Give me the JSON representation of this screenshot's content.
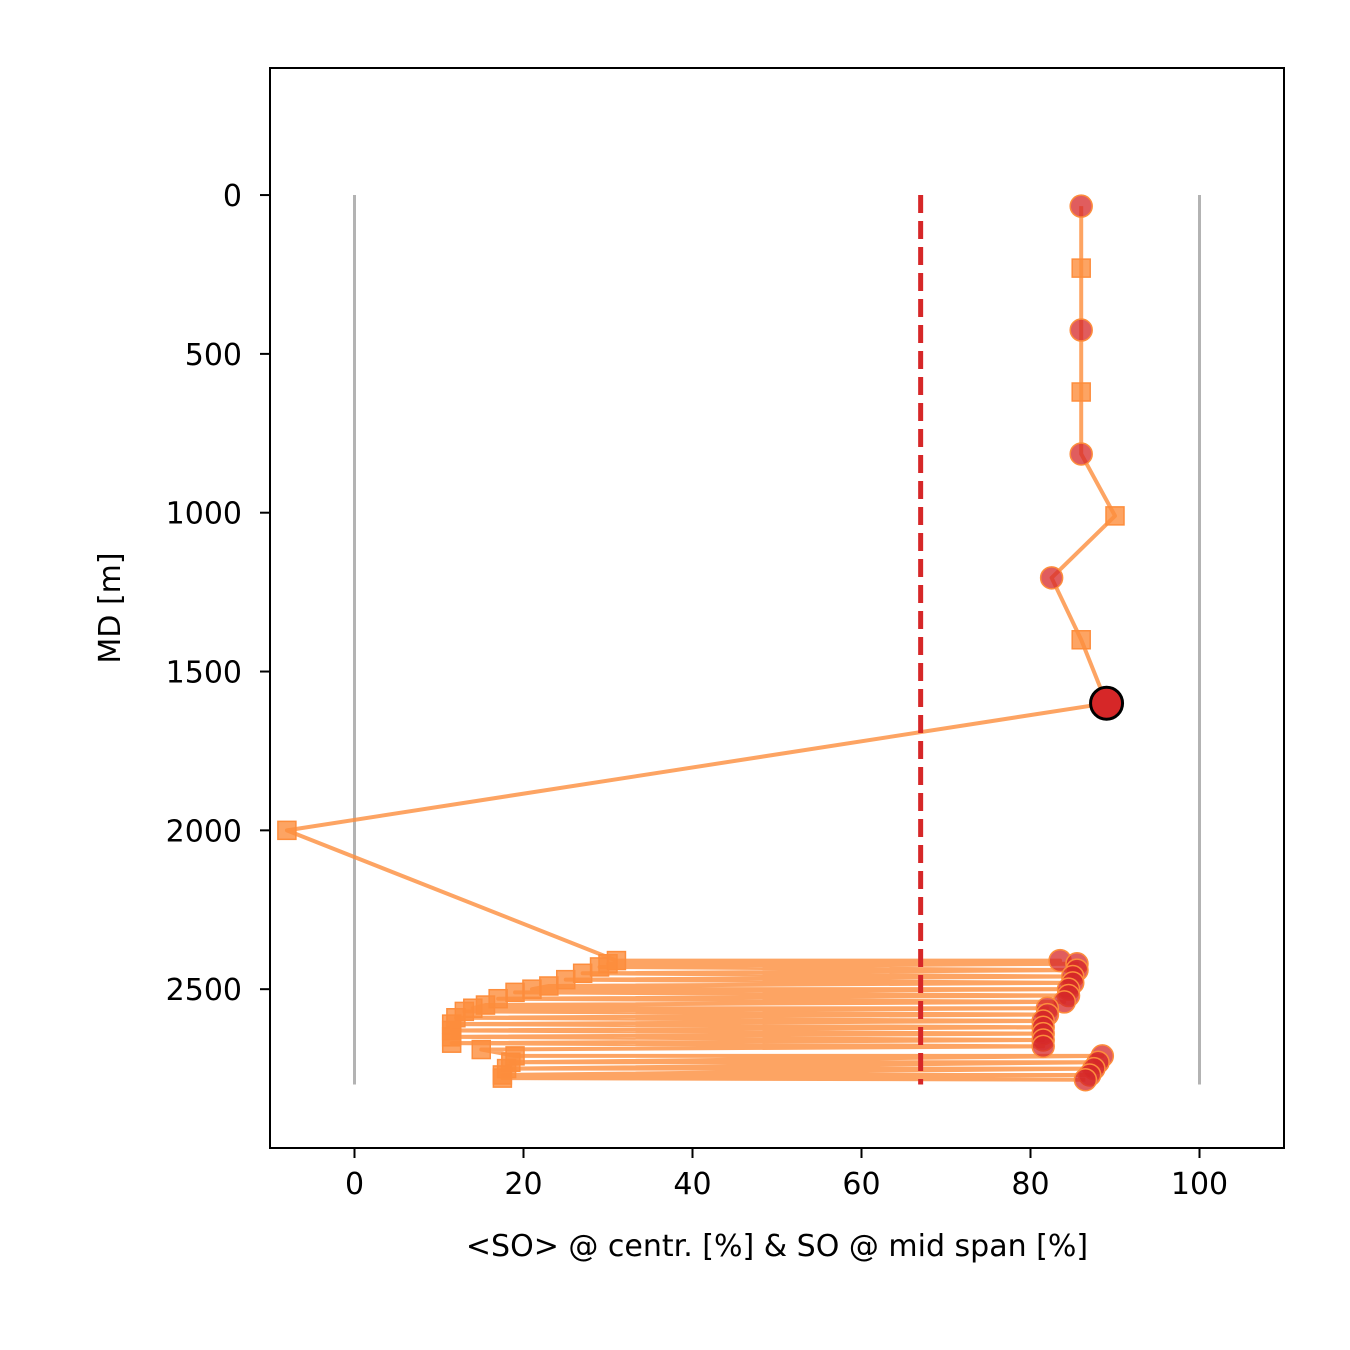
{
  "chart_data": {
    "type": "line",
    "title": "",
    "xlabel": "<SO> @ centr. [%]  &  SO @ mid span [%]",
    "ylabel": "MD [m]",
    "xlim": [
      -10,
      110
    ],
    "ylim": [
      3000,
      -400
    ],
    "y_inverted": true,
    "xticks": [
      "0",
      "20",
      "40",
      "60",
      "80",
      "100"
    ],
    "yticks": [
      "0",
      "500",
      "1000",
      "1500",
      "2000",
      "2500"
    ],
    "grid": false,
    "colors": {
      "path": "#fd8d3c",
      "square_marker": "#fd8d3c",
      "circle_marker": "#d62728",
      "limit_line": "#d62728",
      "bound_lines": "#b3b3b3",
      "highlight_fill": "#d62728",
      "highlight_edge": "#000000"
    },
    "bound_lines": [
      {
        "x": 0,
        "y_range": [
          0,
          2800
        ]
      },
      {
        "x": 100,
        "y_range": [
          0,
          2800
        ]
      }
    ],
    "limit_line": {
      "x": 67,
      "y_range": [
        0,
        2800
      ],
      "style": "dashed"
    },
    "highlight_point": {
      "x": 89,
      "y": 1600
    },
    "series": [
      {
        "name": "<SO> @ centr.",
        "marker": "square",
        "points": [
          {
            "x": 86,
            "y": 230
          },
          {
            "x": 86,
            "y": 620
          },
          {
            "x": 90,
            "y": 1010
          },
          {
            "x": 86,
            "y": 1400
          },
          {
            "x": -8,
            "y": 2000
          },
          {
            "x": 31,
            "y": 2410
          },
          {
            "x": 30,
            "y": 2420
          },
          {
            "x": 29,
            "y": 2430
          },
          {
            "x": 27,
            "y": 2450
          },
          {
            "x": 25,
            "y": 2470
          },
          {
            "x": 23,
            "y": 2490
          },
          {
            "x": 21,
            "y": 2500
          },
          {
            "x": 19,
            "y": 2510
          },
          {
            "x": 17,
            "y": 2530
          },
          {
            "x": 15.5,
            "y": 2550
          },
          {
            "x": 14,
            "y": 2560
          },
          {
            "x": 13,
            "y": 2570
          },
          {
            "x": 12,
            "y": 2590
          },
          {
            "x": 11.5,
            "y": 2610
          },
          {
            "x": 11.5,
            "y": 2630
          },
          {
            "x": 11.5,
            "y": 2650
          },
          {
            "x": 11.5,
            "y": 2670
          },
          {
            "x": 15,
            "y": 2690
          },
          {
            "x": 19,
            "y": 2710
          },
          {
            "x": 18.5,
            "y": 2730
          },
          {
            "x": 18,
            "y": 2750
          },
          {
            "x": 17.5,
            "y": 2770
          },
          {
            "x": 17.5,
            "y": 2780
          }
        ]
      },
      {
        "name": "SO @ mid span",
        "marker": "circle",
        "points": [
          {
            "x": 86,
            "y": 35
          },
          {
            "x": 86,
            "y": 425
          },
          {
            "x": 86,
            "y": 815
          },
          {
            "x": 82.5,
            "y": 1205
          },
          {
            "x": 89,
            "y": 1600
          },
          {
            "x": 83.5,
            "y": 2410
          },
          {
            "x": 85.5,
            "y": 2420
          },
          {
            "x": 85.5,
            "y": 2440
          },
          {
            "x": 85,
            "y": 2460
          },
          {
            "x": 85,
            "y": 2480
          },
          {
            "x": 84.5,
            "y": 2500
          },
          {
            "x": 84.5,
            "y": 2520
          },
          {
            "x": 84,
            "y": 2540
          },
          {
            "x": 82,
            "y": 2560
          },
          {
            "x": 82,
            "y": 2580
          },
          {
            "x": 81.5,
            "y": 2600
          },
          {
            "x": 81.5,
            "y": 2620
          },
          {
            "x": 81.5,
            "y": 2640
          },
          {
            "x": 81.5,
            "y": 2660
          },
          {
            "x": 81.5,
            "y": 2680
          },
          {
            "x": 88.5,
            "y": 2710
          },
          {
            "x": 88,
            "y": 2730
          },
          {
            "x": 87.5,
            "y": 2750
          },
          {
            "x": 87,
            "y": 2770
          },
          {
            "x": 86.5,
            "y": 2785
          }
        ]
      }
    ]
  }
}
